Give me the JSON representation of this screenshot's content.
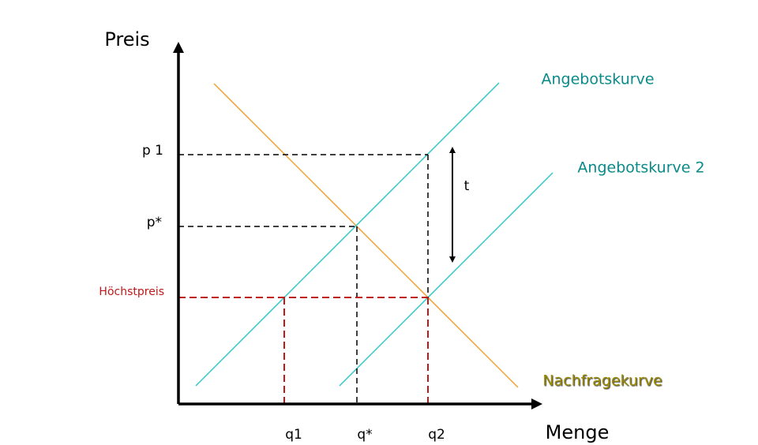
{
  "axes": {
    "y_label": "Preis",
    "x_label": "Menge"
  },
  "curves": [
    {
      "label": "Angebotskurve"
    },
    {
      "label": "Angebotskurve 2"
    },
    {
      "label": "Nachfragekurve"
    }
  ],
  "price_labels": [
    "p 1",
    "p*",
    "Höchstpreis"
  ],
  "quantity_labels": [
    "q1",
    "q*",
    "q2"
  ],
  "shift_label": "t"
}
